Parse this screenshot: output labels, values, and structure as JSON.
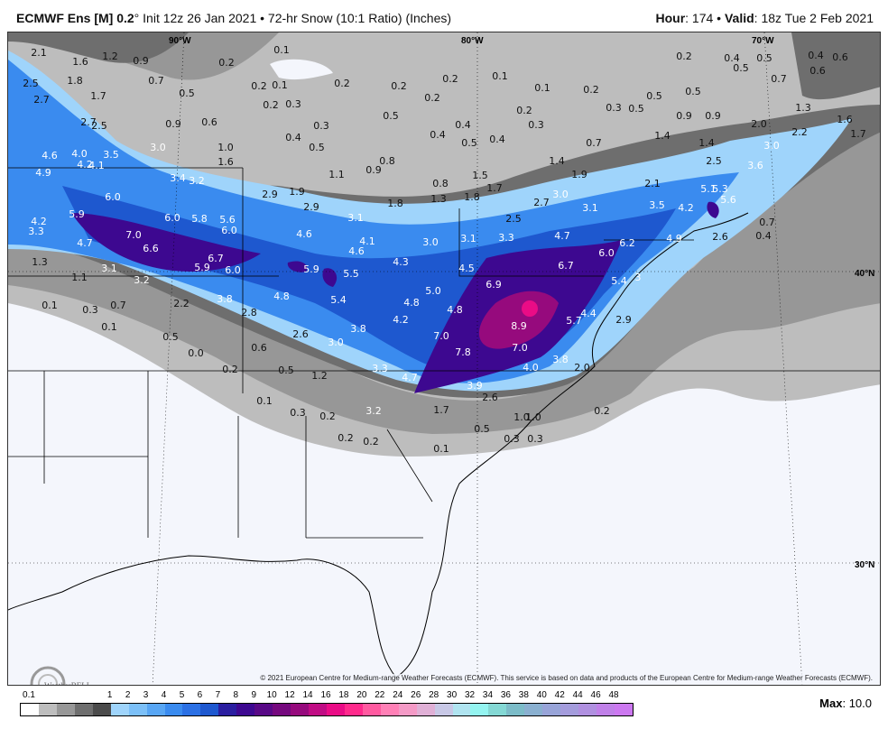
{
  "header": {
    "model": "ECMWF Ens [M] 0.2",
    "init": "° Init 12z 26 Jan 2021 • 72-hr Snow (10:1 Ratio) (Inches)",
    "hour_label": "Hour",
    "hour": ": 174 • ",
    "valid_label": "Valid",
    "valid": ": 18z Tue 2 Feb 2021"
  },
  "map": {
    "gridlines": [
      "90°W",
      "80°W",
      "70°W",
      "40°N",
      "30°N"
    ],
    "values": [
      "2.1",
      "1.6",
      "1.2",
      "0.9",
      "0.1",
      "0.2",
      "2.5",
      "1.8",
      "0.7",
      "0.5",
      "0.2",
      "0.1",
      "0.2",
      "0.2",
      "0.2",
      "0.1",
      "0.1",
      "0.2",
      "0.2",
      "0.4",
      "0.5",
      "0.4",
      "0.6",
      "0.5",
      "0.6",
      "0.7",
      "0.5",
      "0.5",
      "2.7",
      "1.7",
      "0.3",
      "0.2",
      "0.3",
      "0.5",
      "0.2",
      "0.2",
      "0.3",
      "0.3",
      "0.5",
      "0.9",
      "0.9",
      "1.3",
      "1.6",
      "2.7",
      "2.5",
      "0.9",
      "0.6",
      "0.4",
      "0.4",
      "0.4",
      "0.5",
      "0.4",
      "1.7",
      "2.0",
      "2.2",
      "1.4",
      "1.4",
      "0.7",
      "4.6",
      "4.0",
      "3.5",
      "3.0",
      "1.0",
      "0.5",
      "4.2",
      "4.1",
      "1.6",
      "3.0",
      "1.4",
      "1.9",
      "2.5",
      "3.6",
      "4.9",
      "3.4",
      "3.2",
      "1.1",
      "0.9",
      "0.8",
      "0.8",
      "1.5",
      "1.7",
      "1.8",
      "1.3",
      "1.8",
      "2.1",
      "5.1",
      "5.3",
      "5.6",
      "6.0",
      "2.9",
      "1.9",
      "2.9",
      "3.5",
      "4.2",
      "2.7",
      "3.0",
      "3.1",
      "6.0",
      "5.8",
      "5.6",
      "3.1",
      "0.7",
      "4.2",
      "5.9",
      "6.0",
      "4.6",
      "2.5",
      "0.4",
      "3.3",
      "7.0",
      "4.7",
      "6.6",
      "4.1",
      "3.0",
      "3.1",
      "3.3",
      "4.7",
      "4.9",
      "2.6",
      "6.2",
      "1.3",
      "6.7",
      "4.6",
      "6.0",
      "3.1",
      "5.9",
      "6.0",
      "4.3",
      "5.9",
      "5.5",
      "4.5",
      "6.7",
      "1.1",
      "3.2",
      "4.8",
      "5.4",
      "3.8",
      "6.9",
      "5.4",
      "3",
      "0.1",
      "0.3",
      "0.7",
      "2.2",
      "5.0",
      "4.8",
      "2.8",
      "4.2",
      "8.9",
      "5.7",
      "4.4",
      "2.9",
      "0.1",
      "4.8",
      "2.6",
      "3.0",
      "3.8",
      "7.0",
      "0.5",
      "0.0",
      "0.6",
      "7.8",
      "7.0",
      "3.8",
      "2.0",
      "0.2",
      "0.5",
      "1.2",
      "3.3",
      "4.7",
      "4.0",
      "3.9",
      "2.6",
      "0.1",
      "1.7",
      "0.2",
      "0.3",
      "0.2",
      "3.2",
      "1.0",
      "1.0",
      "0.5",
      "0.2",
      "0.2",
      "0.3",
      "0.3",
      "0.1"
    ],
    "copyright": "© 2021 European Centre for Medium-range Weather Forecasts (ECMWF). This service is based on data and products of the European Centre for Medium-range Weather Forecasts (ECMWF).",
    "logo_text": "WeatherBELL"
  },
  "legend": {
    "labels": [
      "0.1",
      "1",
      "2",
      "3",
      "4",
      "5",
      "6",
      "7",
      "8",
      "9",
      "10",
      "12",
      "14",
      "16",
      "18",
      "20",
      "22",
      "24",
      "26",
      "28",
      "30",
      "32",
      "34",
      "36",
      "38",
      "40",
      "42",
      "44",
      "46",
      "48"
    ],
    "colors": [
      "#ffffff",
      "#bdbdbd",
      "#979797",
      "#6e6e6e",
      "#4b4b4b",
      "#9fd4fb",
      "#7cc0f8",
      "#58a6f4",
      "#3a8bef",
      "#2b70e4",
      "#1e58cf",
      "#2a1ea0",
      "#3d0890",
      "#580886",
      "#75087e",
      "#960a7d",
      "#c00c84",
      "#ea0c86",
      "#ff2a8c",
      "#ff5aa0",
      "#ff80b6",
      "#f49ac6",
      "#e0b0d6",
      "#c8c8e6",
      "#b0e4f0",
      "#94f4f0",
      "#84d8d4",
      "#7cbcc8",
      "#8ab0d0",
      "#98a4d8",
      "#a49cdc",
      "#b090e0",
      "#c080e8",
      "#cc78f0"
    ],
    "max_label": "Max",
    "max_value": ": 10.0"
  }
}
